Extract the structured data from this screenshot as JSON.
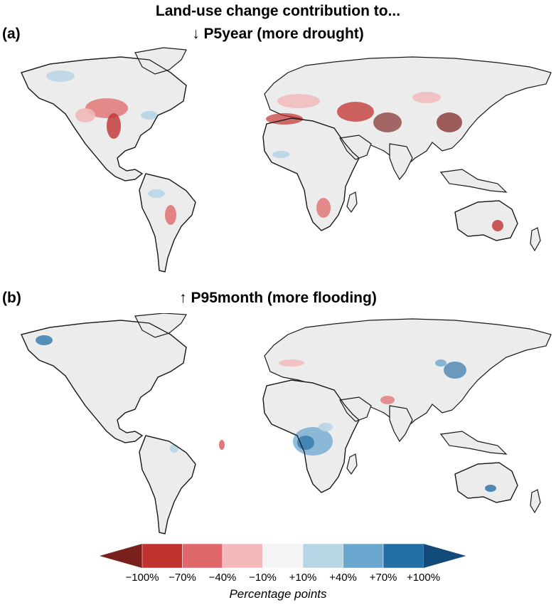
{
  "figure": {
    "title": "Land-use change contribution to...",
    "panels": [
      {
        "tag": "(a)",
        "title": "↓ P5year (more drought)"
      },
      {
        "tag": "(b)",
        "title": "↑ P95month (more flooding)"
      }
    ]
  },
  "legend": {
    "title": "Percentage points",
    "tick_labels": [
      "−100%",
      "−70%",
      "−40%",
      "−10%",
      "+10%",
      "+40%",
      "+70%",
      "+100%"
    ],
    "colors": [
      "#7b1f1c",
      "#c1322f",
      "#e0686a",
      "#f2b8ba",
      "#f4f4f4",
      "#b7d5e5",
      "#6aa7cf",
      "#236fa6",
      "#124a7a"
    ]
  },
  "colors": {
    "land": "#ececec",
    "coast": "#1a1a1a"
  }
}
